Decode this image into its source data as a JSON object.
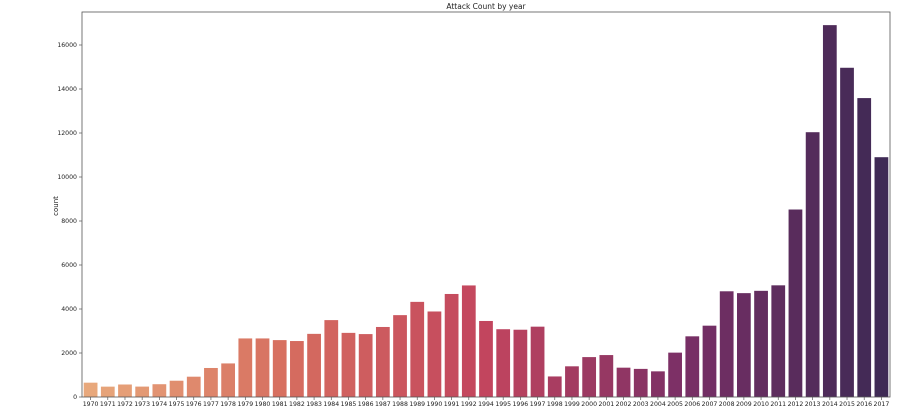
{
  "chart_data": {
    "type": "bar",
    "title": "Attack Count by year",
    "xlabel": "",
    "ylabel": "count",
    "ylim": [
      0,
      17500
    ],
    "yticks": [
      0,
      2000,
      4000,
      6000,
      8000,
      10000,
      12000,
      14000,
      16000
    ],
    "grid": false,
    "categories": [
      "1970",
      "1971",
      "1972",
      "1973",
      "1974",
      "1975",
      "1976",
      "1977",
      "1978",
      "1979",
      "1980",
      "1981",
      "1982",
      "1983",
      "1984",
      "1985",
      "1986",
      "1987",
      "1988",
      "1989",
      "1990",
      "1991",
      "1992",
      "1994",
      "1995",
      "1996",
      "1997",
      "1998",
      "1999",
      "2000",
      "2001",
      "2002",
      "2003",
      "2004",
      "2005",
      "2006",
      "2007",
      "2008",
      "2009",
      "2010",
      "2011",
      "2012",
      "2013",
      "2014",
      "2015",
      "2016",
      "2017"
    ],
    "values": [
      651,
      471,
      568,
      473,
      581,
      740,
      923,
      1319,
      1526,
      2662,
      2662,
      2586,
      2544,
      2870,
      3495,
      2915,
      2860,
      3183,
      3721,
      4324,
      3887,
      4683,
      5071,
      3456,
      3081,
      3058,
      3197,
      934,
      1395,
      1814,
      1906,
      1333,
      1278,
      1166,
      2017,
      2758,
      3242,
      4805,
      4721,
      4826,
      5076,
      8522,
      12036,
      16903,
      14965,
      13587,
      10900
    ],
    "palette": [
      "#e8a87c",
      "#d66d5f",
      "#c2455e",
      "#7a2f66",
      "#3f2a55"
    ]
  }
}
